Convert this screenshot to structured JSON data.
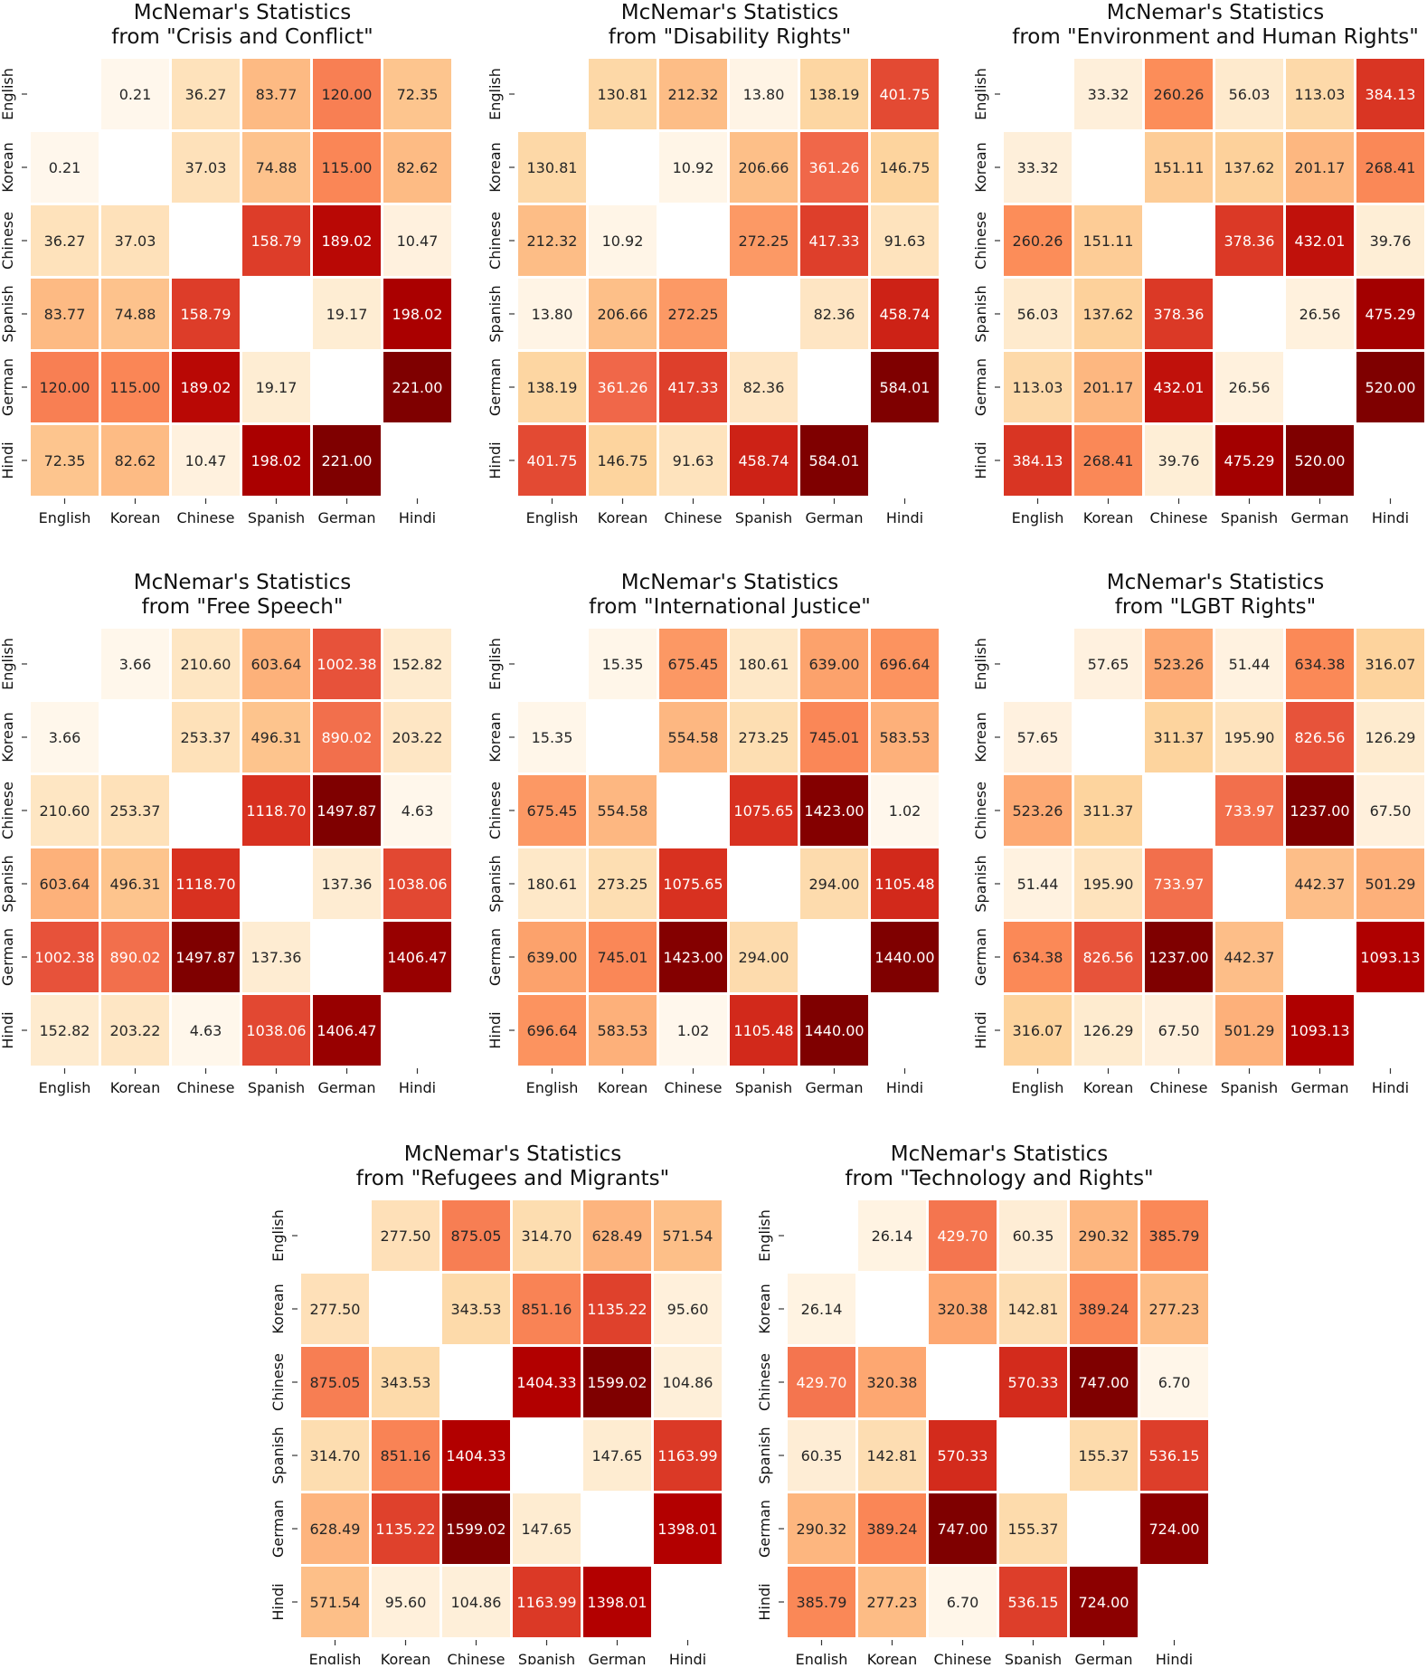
{
  "figure": {
    "languages": [
      "English",
      "Korean",
      "Chinese",
      "Spanish",
      "German",
      "Hindi"
    ],
    "colormap": "OrRd"
  },
  "chart_data": [
    {
      "type": "heatmap",
      "title": "McNemar's Statistics",
      "subtitle": "from \"Crisis and Conflict\"",
      "rows": [
        "English",
        "Korean",
        "Chinese",
        "Spanish",
        "German",
        "Hindi"
      ],
      "cols": [
        "English",
        "Korean",
        "Chinese",
        "Spanish",
        "German",
        "Hindi"
      ],
      "values": [
        [
          null,
          0.21,
          36.27,
          83.77,
          120.0,
          72.35
        ],
        [
          0.21,
          null,
          37.03,
          74.88,
          115.0,
          82.62
        ],
        [
          36.27,
          37.03,
          null,
          158.79,
          189.02,
          10.47
        ],
        [
          83.77,
          74.88,
          158.79,
          null,
          19.17,
          198.02
        ],
        [
          120.0,
          115.0,
          189.02,
          19.17,
          null,
          221.0
        ],
        [
          72.35,
          82.62,
          10.47,
          198.02,
          221.0,
          null
        ]
      ],
      "xlabel": "",
      "ylabel": ""
    },
    {
      "type": "heatmap",
      "title": "McNemar's Statistics",
      "subtitle": "from \"Disability Rights\"",
      "rows": [
        "English",
        "Korean",
        "Chinese",
        "Spanish",
        "German",
        "Hindi"
      ],
      "cols": [
        "English",
        "Korean",
        "Chinese",
        "Spanish",
        "German",
        "Hindi"
      ],
      "values": [
        [
          null,
          130.81,
          212.32,
          13.8,
          138.19,
          401.75
        ],
        [
          130.81,
          null,
          10.92,
          206.66,
          361.26,
          146.75
        ],
        [
          212.32,
          10.92,
          null,
          272.25,
          417.33,
          91.63
        ],
        [
          13.8,
          206.66,
          272.25,
          null,
          82.36,
          458.74
        ],
        [
          138.19,
          361.26,
          417.33,
          82.36,
          null,
          584.01
        ],
        [
          401.75,
          146.75,
          91.63,
          458.74,
          584.01,
          null
        ]
      ],
      "xlabel": "",
      "ylabel": ""
    },
    {
      "type": "heatmap",
      "title": "McNemar's Statistics",
      "subtitle": "from \"Environment and Human Rights\"",
      "rows": [
        "English",
        "Korean",
        "Chinese",
        "Spanish",
        "German",
        "Hindi"
      ],
      "cols": [
        "English",
        "Korean",
        "Chinese",
        "Spanish",
        "German",
        "Hindi"
      ],
      "values": [
        [
          null,
          33.32,
          260.26,
          56.03,
          113.03,
          384.13
        ],
        [
          33.32,
          null,
          151.11,
          137.62,
          201.17,
          268.41
        ],
        [
          260.26,
          151.11,
          null,
          378.36,
          432.01,
          39.76
        ],
        [
          56.03,
          137.62,
          378.36,
          null,
          26.56,
          475.29
        ],
        [
          113.03,
          201.17,
          432.01,
          26.56,
          null,
          520.0
        ],
        [
          384.13,
          268.41,
          39.76,
          475.29,
          520.0,
          null
        ]
      ],
      "xlabel": "",
      "ylabel": ""
    },
    {
      "type": "heatmap",
      "title": "McNemar's Statistics",
      "subtitle": "from \"Free Speech\"",
      "rows": [
        "English",
        "Korean",
        "Chinese",
        "Spanish",
        "German",
        "Hindi"
      ],
      "cols": [
        "English",
        "Korean",
        "Chinese",
        "Spanish",
        "German",
        "Hindi"
      ],
      "values": [
        [
          null,
          3.66,
          210.6,
          603.64,
          1002.38,
          152.82
        ],
        [
          3.66,
          null,
          253.37,
          496.31,
          890.02,
          203.22
        ],
        [
          210.6,
          253.37,
          null,
          1118.7,
          1497.87,
          4.63
        ],
        [
          603.64,
          496.31,
          1118.7,
          null,
          137.36,
          1038.06
        ],
        [
          1002.38,
          890.02,
          1497.87,
          137.36,
          null,
          1406.47
        ],
        [
          152.82,
          203.22,
          4.63,
          1038.06,
          1406.47,
          null
        ]
      ],
      "xlabel": "",
      "ylabel": ""
    },
    {
      "type": "heatmap",
      "title": "McNemar's Statistics",
      "subtitle": "from \"International Justice\"",
      "rows": [
        "English",
        "Korean",
        "Chinese",
        "Spanish",
        "German",
        "Hindi"
      ],
      "cols": [
        "English",
        "Korean",
        "Chinese",
        "Spanish",
        "German",
        "Hindi"
      ],
      "values": [
        [
          null,
          15.35,
          675.45,
          180.61,
          639.0,
          696.64
        ],
        [
          15.35,
          null,
          554.58,
          273.25,
          745.01,
          583.53
        ],
        [
          675.45,
          554.58,
          null,
          1075.65,
          1423.0,
          1.02
        ],
        [
          180.61,
          273.25,
          1075.65,
          null,
          294.0,
          1105.48
        ],
        [
          639.0,
          745.01,
          1423.0,
          294.0,
          null,
          1440.0
        ],
        [
          696.64,
          583.53,
          1.02,
          1105.48,
          1440.0,
          null
        ]
      ],
      "xlabel": "",
      "ylabel": ""
    },
    {
      "type": "heatmap",
      "title": "McNemar's Statistics",
      "subtitle": "from \"LGBT Rights\"",
      "rows": [
        "English",
        "Korean",
        "Chinese",
        "Spanish",
        "German",
        "Hindi"
      ],
      "cols": [
        "English",
        "Korean",
        "Chinese",
        "Spanish",
        "German",
        "Hindi"
      ],
      "values": [
        [
          null,
          57.65,
          523.26,
          51.44,
          634.38,
          316.07
        ],
        [
          57.65,
          null,
          311.37,
          195.9,
          826.56,
          126.29
        ],
        [
          523.26,
          311.37,
          null,
          733.97,
          1237.0,
          67.5
        ],
        [
          51.44,
          195.9,
          733.97,
          null,
          442.37,
          501.29
        ],
        [
          634.38,
          826.56,
          1237.0,
          442.37,
          null,
          1093.13
        ],
        [
          316.07,
          126.29,
          67.5,
          501.29,
          1093.13,
          null
        ]
      ],
      "xlabel": "",
      "ylabel": ""
    },
    {
      "type": "heatmap",
      "title": "McNemar's Statistics",
      "subtitle": "from \"Refugees and Migrants\"",
      "rows": [
        "English",
        "Korean",
        "Chinese",
        "Spanish",
        "German",
        "Hindi"
      ],
      "cols": [
        "English",
        "Korean",
        "Chinese",
        "Spanish",
        "German",
        "Hindi"
      ],
      "values": [
        [
          null,
          277.5,
          875.05,
          314.7,
          628.49,
          571.54
        ],
        [
          277.5,
          null,
          343.53,
          851.16,
          1135.22,
          95.6
        ],
        [
          875.05,
          343.53,
          null,
          1404.33,
          1599.02,
          104.86
        ],
        [
          314.7,
          851.16,
          1404.33,
          null,
          147.65,
          1163.99
        ],
        [
          628.49,
          1135.22,
          1599.02,
          147.65,
          null,
          1398.01
        ],
        [
          571.54,
          95.6,
          104.86,
          1163.99,
          1398.01,
          null
        ]
      ],
      "xlabel": "",
      "ylabel": ""
    },
    {
      "type": "heatmap",
      "title": "McNemar's Statistics",
      "subtitle": "from \"Technology and Rights\"",
      "rows": [
        "English",
        "Korean",
        "Chinese",
        "Spanish",
        "German",
        "Hindi"
      ],
      "cols": [
        "English",
        "Korean",
        "Chinese",
        "Spanish",
        "German",
        "Hindi"
      ],
      "values": [
        [
          null,
          26.14,
          429.7,
          60.35,
          290.32,
          385.79
        ],
        [
          26.14,
          null,
          320.38,
          142.81,
          389.24,
          277.23
        ],
        [
          429.7,
          320.38,
          null,
          570.33,
          747.0,
          6.7
        ],
        [
          60.35,
          142.81,
          570.33,
          null,
          155.37,
          536.15
        ],
        [
          290.32,
          389.24,
          747.0,
          155.37,
          null,
          724.0
        ],
        [
          385.79,
          277.23,
          6.7,
          536.15,
          724.0,
          null
        ]
      ],
      "xlabel": "",
      "ylabel": ""
    }
  ]
}
